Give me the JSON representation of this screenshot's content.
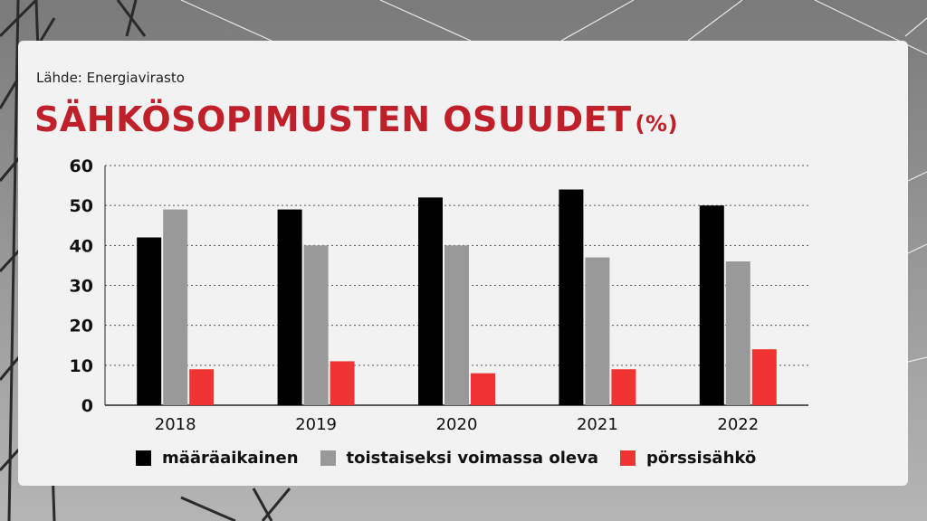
{
  "source_label": "Lähde: Energiavirasto",
  "title_main": "SÄHKÖSOPIMUSTEN OSUUDET",
  "title_unit": "(%)",
  "colors": {
    "title": "#c0202a",
    "series": [
      "#000000",
      "#999999",
      "#f03333"
    ]
  },
  "chart_data": {
    "type": "bar",
    "title": "SÄHKÖSOPIMUSTEN OSUUDET (%)",
    "xlabel": "",
    "ylabel": "",
    "categories": [
      "2018",
      "2019",
      "2020",
      "2021",
      "2022"
    ],
    "series": [
      {
        "name": "määräaikainen",
        "values": [
          42,
          49,
          52,
          54,
          50
        ]
      },
      {
        "name": "toistaiseksi voimassa oleva",
        "values": [
          49,
          40,
          40,
          37,
          36
        ]
      },
      {
        "name": "pörssisähkö",
        "values": [
          9,
          11,
          8,
          9,
          14
        ]
      }
    ],
    "yticks": [
      0,
      10,
      20,
      30,
      40,
      50,
      60
    ],
    "ylim": [
      0,
      60
    ],
    "grid": true,
    "legend_position": "bottom"
  }
}
